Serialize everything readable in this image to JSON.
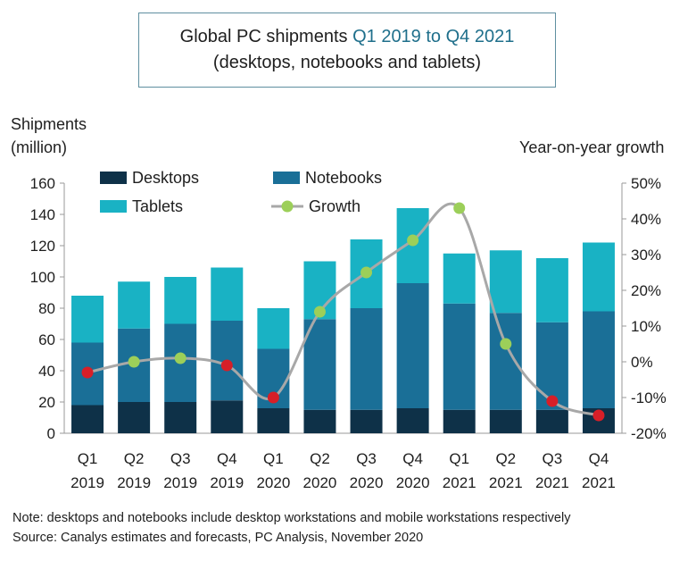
{
  "title": {
    "prefix": "Global PC shipments ",
    "highlight": "Q1 2019 to Q4 2021",
    "line2": "(desktops, notebooks and tablets)"
  },
  "colors": {
    "desktops": "#0e3148",
    "notebooks": "#1a6f97",
    "tablets": "#19b2c4",
    "growth_line": "#a8a8a8",
    "growth_marker_positive": "#9ccf59",
    "growth_marker_negative": "#d71f28",
    "highlight_text": "#1f6f8b"
  },
  "chart_data": {
    "type": "bar",
    "stacked": true,
    "categories": [
      [
        "Q1",
        "2019"
      ],
      [
        "Q2",
        "2019"
      ],
      [
        "Q3",
        "2019"
      ],
      [
        "Q4",
        "2019"
      ],
      [
        "Q1",
        "2020"
      ],
      [
        "Q2",
        "2020"
      ],
      [
        "Q3",
        "2020"
      ],
      [
        "Q4",
        "2020"
      ],
      [
        "Q1",
        "2021"
      ],
      [
        "Q2",
        "2021"
      ],
      [
        "Q3",
        "2021"
      ],
      [
        "Q4",
        "2021"
      ]
    ],
    "series": [
      {
        "name": "Desktops",
        "values": [
          18,
          20,
          20,
          21,
          16,
          15,
          15,
          16,
          15,
          15,
          15,
          16
        ]
      },
      {
        "name": "Notebooks",
        "values": [
          40,
          47,
          50,
          51,
          38,
          58,
          65,
          80,
          68,
          62,
          56,
          62
        ]
      },
      {
        "name": "Tablets",
        "values": [
          30,
          30,
          30,
          34,
          26,
          37,
          44,
          48,
          32,
          40,
          41,
          44
        ]
      },
      {
        "name": "Growth",
        "axis": "right",
        "type": "line",
        "values": [
          -3,
          0,
          1,
          -1,
          -10,
          14,
          25,
          34,
          43,
          5,
          -11,
          -15
        ]
      }
    ],
    "ylabel": "Shipments\n(million)",
    "ylabel_lines": [
      "Shipments",
      "(million)"
    ],
    "y2label": "Year-on-year growth",
    "ylim": [
      0,
      160
    ],
    "yticks": [
      "0",
      "20",
      "40",
      "60",
      "80",
      "100",
      "120",
      "140",
      "160"
    ],
    "y2lim": [
      -20,
      50
    ],
    "y2ticks": [
      "-20%",
      "-10%",
      "0%",
      "10%",
      "20%",
      "30%",
      "40%",
      "50%"
    ],
    "legend_position": "top-left",
    "grid": false
  },
  "footnote": {
    "note": "Note: desktops and notebooks include desktop workstations and mobile workstations respectively",
    "source": "Source: Canalys estimates and forecasts, PC Analysis, November 2020"
  }
}
